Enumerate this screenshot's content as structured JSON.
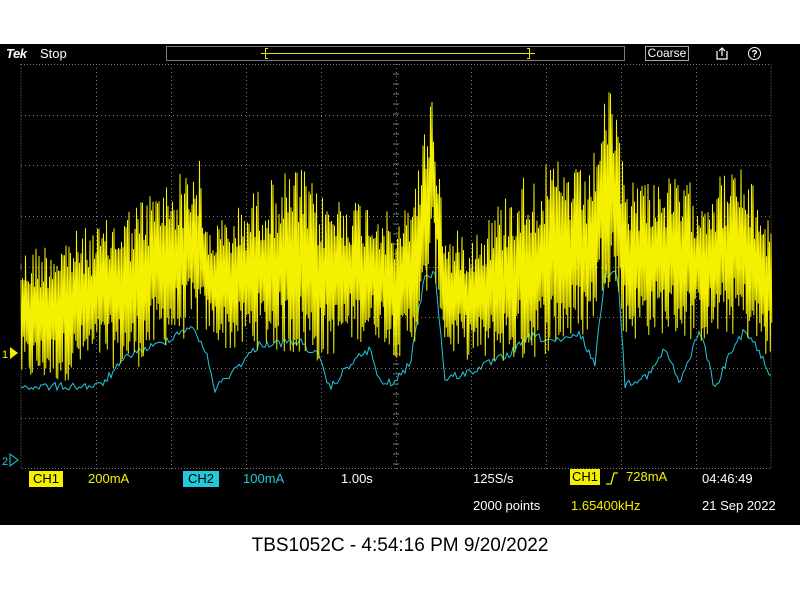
{
  "topbar": {
    "brand": "Tek",
    "run_state": "Stop",
    "knob_mode": "Coarse",
    "save_icon": "save-icon",
    "help_icon": "help-icon",
    "help_glyph": "?"
  },
  "markers": {
    "ch1": "1",
    "ch2": "2"
  },
  "colors": {
    "ch1": "#f5f000",
    "ch2": "#22c8dc",
    "grid": "#7a7a7a",
    "background": "#000000"
  },
  "bottombar": {
    "ch1_label": "CH1",
    "ch1_scale": "200mA",
    "ch2_label": "CH2",
    "ch2_scale": "100mA",
    "timebase": "1.00s",
    "sample_rate": "125S/s",
    "record_length": "2000 points",
    "trigger_source": "CH1",
    "trigger_slope_icon": "rising-edge-icon",
    "trigger_level": "728mA",
    "trigger_frequency": "1.65400kHz",
    "time": "04:46:49",
    "date": "21 Sep 2022"
  },
  "caption": "TBS1052C - 4:54:16 PM   9/20/2022"
}
